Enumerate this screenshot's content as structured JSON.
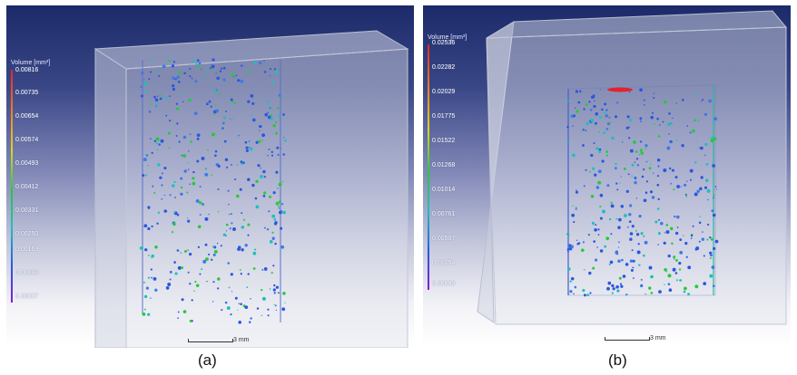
{
  "panels": [
    {
      "caption": "(a)",
      "legend": {
        "title": "Volume [mm³]",
        "ticks": [
          "0.00816",
          "0.00735",
          "0.00654",
          "0.00574",
          "0.00493",
          "0.00412",
          "0.00331",
          "0.00250",
          "0.00169",
          "0.00088",
          "0.00007"
        ]
      },
      "scale_bar_label": "3 mm"
    },
    {
      "caption": "(b)",
      "legend": {
        "title": "Volume [mm³]",
        "ticks": [
          "0.02536",
          "0.02282",
          "0.02029",
          "0.01775",
          "0.01522",
          "0.01268",
          "0.01014",
          "0.00761",
          "0.00507",
          "0.00254",
          "0.00000"
        ]
      },
      "scale_bar_label": "3 mm"
    }
  ],
  "colors": {
    "background_top": "#1c2a6a",
    "background_bottom": "#ffffff",
    "pore_low": "#2a56e0",
    "pore_mid": "#25c93b",
    "pore_high": "#e2242a"
  }
}
